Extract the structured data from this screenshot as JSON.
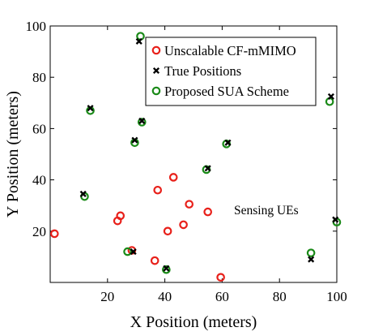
{
  "chart_data": {
    "type": "scatter",
    "xlabel": "X Position (meters)",
    "ylabel": "Y Position (meters)",
    "xlim": [
      0,
      100
    ],
    "ylim": [
      0,
      100
    ],
    "xticks": [
      20,
      40,
      60,
      80,
      100
    ],
    "yticks": [
      20,
      40,
      60,
      80,
      100
    ],
    "grid": false,
    "legend_position": "top-right",
    "annotation": "Sensing UEs",
    "series": [
      {
        "name": "Unscalable CF-mMIMO",
        "marker": "circle-open",
        "color": "#e8201a",
        "points": [
          [
            1.5,
            19
          ],
          [
            23.5,
            24
          ],
          [
            24.5,
            26
          ],
          [
            28.5,
            12.5
          ],
          [
            36.5,
            8.5
          ],
          [
            37.5,
            36
          ],
          [
            41,
            20
          ],
          [
            43,
            41
          ],
          [
            46.5,
            22.5
          ],
          [
            48.5,
            30.5
          ],
          [
            55,
            27.5
          ],
          [
            59.5,
            2
          ]
        ]
      },
      {
        "name": "True Positions",
        "marker": "x",
        "color": "#000000",
        "points": [
          [
            11.5,
            34.5
          ],
          [
            14,
            68
          ],
          [
            29,
            12
          ],
          [
            29.5,
            55.5
          ],
          [
            31,
            94
          ],
          [
            32,
            63
          ],
          [
            40.5,
            5.5
          ],
          [
            55,
            44.5
          ],
          [
            62,
            54.5
          ],
          [
            91,
            9
          ],
          [
            98,
            72.5
          ],
          [
            99.5,
            24.5
          ]
        ]
      },
      {
        "name": "Proposed SUA Scheme",
        "marker": "circle-open",
        "color": "#1a8a18",
        "points": [
          [
            12,
            33.5
          ],
          [
            14,
            67
          ],
          [
            27,
            12
          ],
          [
            29.5,
            54.5
          ],
          [
            31.5,
            96
          ],
          [
            32,
            62.5
          ],
          [
            40.5,
            5
          ],
          [
            54.5,
            44
          ],
          [
            61.5,
            54
          ],
          [
            91,
            11.5
          ],
          [
            97.5,
            70.5
          ],
          [
            100,
            23.5
          ]
        ]
      }
    ]
  }
}
